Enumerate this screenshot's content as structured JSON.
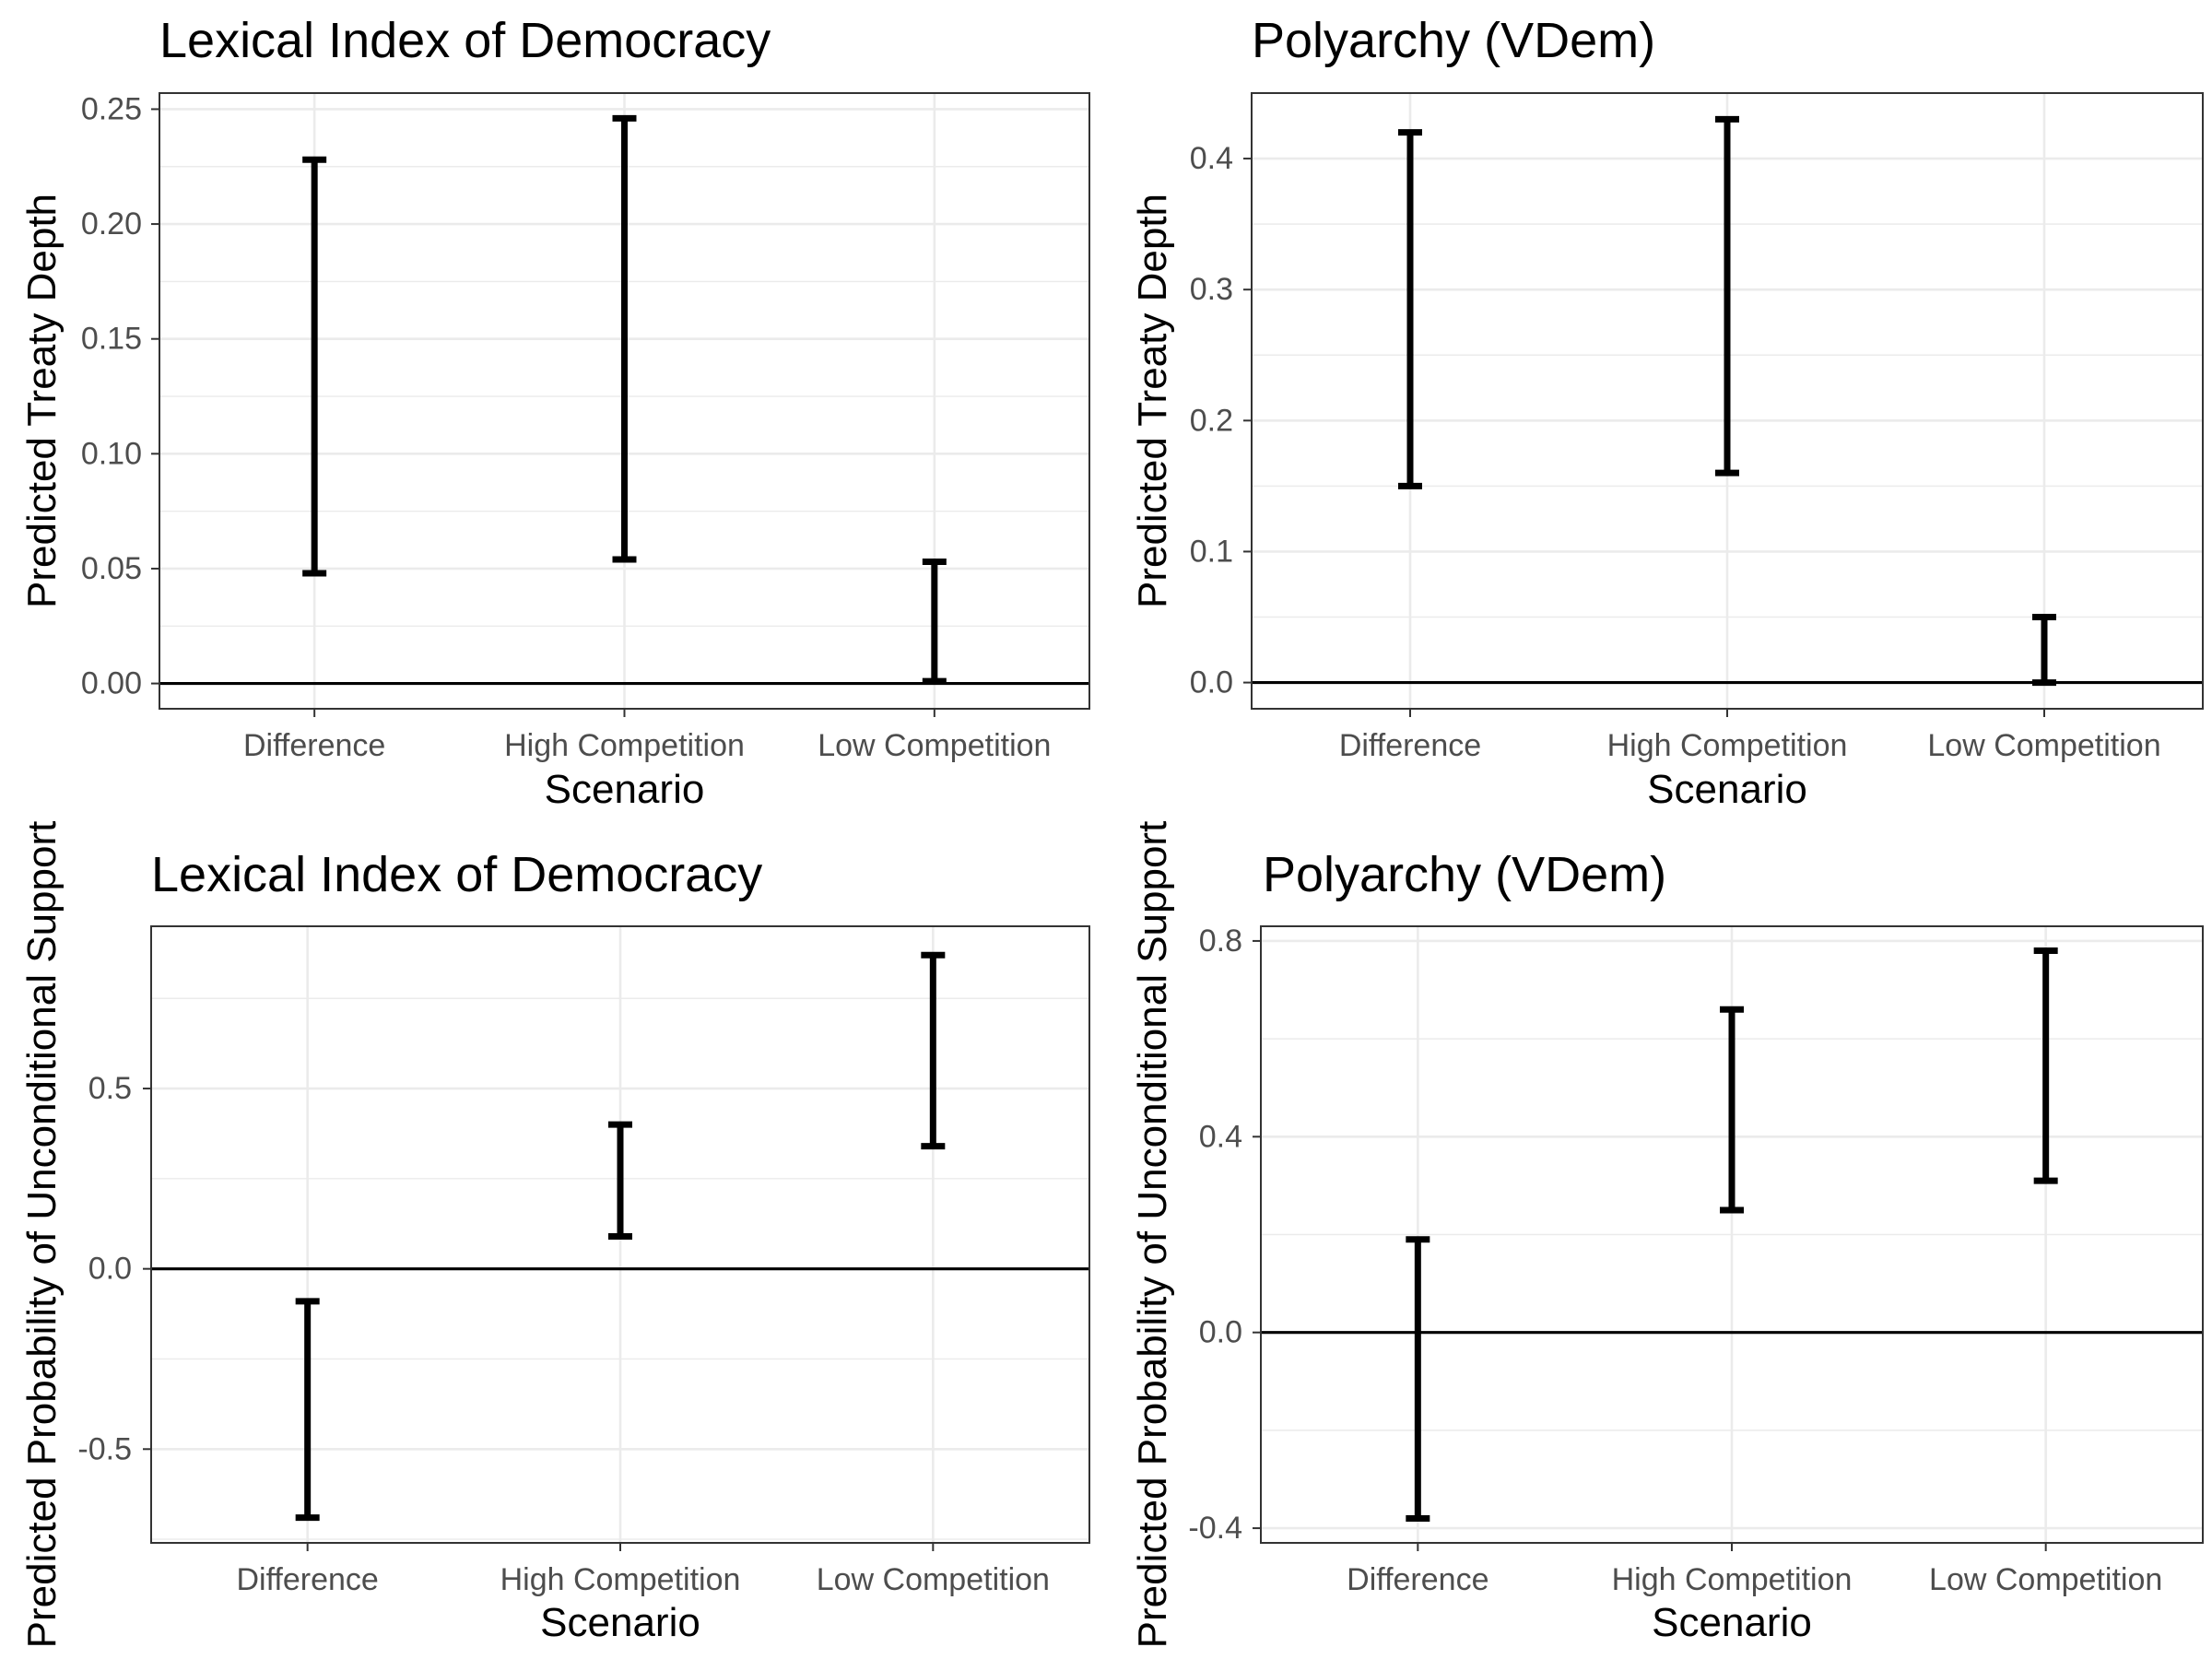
{
  "chart_data": [
    {
      "type": "errorbar",
      "title": "Lexical Index of Democracy",
      "xlabel": "Scenario",
      "ylabel": "Predicted Treaty Depth",
      "categories": [
        "Difference",
        "High Competition",
        "Low Competition"
      ],
      "lower": [
        0.048,
        0.054,
        0.001
      ],
      "upper": [
        0.228,
        0.246,
        0.053
      ],
      "ylim": [
        -0.011,
        0.257
      ],
      "yticks": [
        0.0,
        0.05,
        0.1,
        0.15,
        0.2,
        0.25
      ],
      "ytick_labels": [
        "0.00",
        "0.05",
        "0.10",
        "0.15",
        "0.20",
        "0.25"
      ],
      "hline": 0,
      "grid": true
    },
    {
      "type": "errorbar",
      "title": "Polyarchy (VDem)",
      "xlabel": "Scenario",
      "ylabel": "Predicted Treaty Depth",
      "categories": [
        "Difference",
        "High Competition",
        "Low Competition"
      ],
      "lower": [
        0.15,
        0.16,
        0.0
      ],
      "upper": [
        0.42,
        0.43,
        0.05
      ],
      "ylim": [
        -0.02,
        0.45
      ],
      "yticks": [
        0.0,
        0.1,
        0.2,
        0.3,
        0.4
      ],
      "ytick_labels": [
        "0.0",
        "0.1",
        "0.2",
        "0.3",
        "0.4"
      ],
      "hline": 0,
      "grid": true
    },
    {
      "type": "errorbar",
      "title": "Lexical Index of Democracy",
      "xlabel": "Scenario",
      "ylabel": "Predicted Probability of Unconditional Support",
      "categories": [
        "Difference",
        "High Competition",
        "Low Competition"
      ],
      "lower": [
        -0.69,
        0.09,
        0.34
      ],
      "upper": [
        -0.09,
        0.4,
        0.87
      ],
      "ylim": [
        -0.76,
        0.95
      ],
      "yticks": [
        -0.5,
        0.0,
        0.5
      ],
      "ytick_labels": [
        "-0.5",
        "0.0",
        "0.5"
      ],
      "hline": 0,
      "grid": true
    },
    {
      "type": "errorbar",
      "title": "Polyarchy (VDem)",
      "xlabel": "Scenario",
      "ylabel": "Predicted Probability of Unconditional Support",
      "categories": [
        "Difference",
        "High Competition",
        "Low Competition"
      ],
      "lower": [
        -0.38,
        0.25,
        0.31
      ],
      "upper": [
        0.19,
        0.66,
        0.78
      ],
      "ylim": [
        -0.43,
        0.83
      ],
      "yticks": [
        -0.4,
        0.0,
        0.4,
        0.8
      ],
      "ytick_labels": [
        "-0.4",
        "0.0",
        "0.4",
        "0.8"
      ],
      "hline": 0,
      "grid": true
    }
  ]
}
